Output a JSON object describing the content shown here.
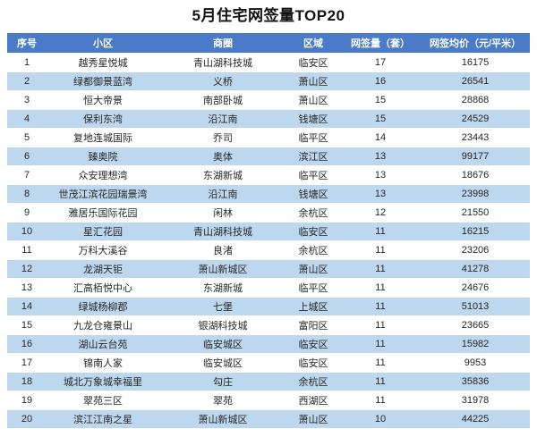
{
  "page": {
    "title": "5月住宅网签量TOP20"
  },
  "chart_data": {
    "type": "table",
    "title": "5月住宅网签量TOP20",
    "columns": [
      "序号",
      "小区",
      "商圈",
      "区域",
      "网签量（套）",
      "网签均价（元/平米）"
    ],
    "rows": [
      [
        "1",
        "越秀星悦城",
        "青山湖科技城",
        "临安区",
        "17",
        "16175"
      ],
      [
        "2",
        "绿都御景蓝湾",
        "义桥",
        "萧山区",
        "16",
        "26541"
      ],
      [
        "3",
        "恒大帝景",
        "南部卧城",
        "萧山区",
        "15",
        "28868"
      ],
      [
        "4",
        "保利东湾",
        "沿江南",
        "钱塘区",
        "15",
        "24529"
      ],
      [
        "5",
        "复地连城国际",
        "乔司",
        "临平区",
        "14",
        "23443"
      ],
      [
        "6",
        "臻奥院",
        "奥体",
        "滨江区",
        "13",
        "99177"
      ],
      [
        "7",
        "众安理想湾",
        "东湖新城",
        "临平区",
        "13",
        "18676"
      ],
      [
        "8",
        "世茂江滨花园瑞景湾",
        "沿江南",
        "钱塘区",
        "13",
        "23998"
      ],
      [
        "9",
        "雅居乐国际花园",
        "闲林",
        "余杭区",
        "12",
        "21550"
      ],
      [
        "10",
        "星汇花园",
        "青山湖科技城",
        "临安区",
        "11",
        "16215"
      ],
      [
        "11",
        "万科大溪谷",
        "良渚",
        "余杭区",
        "11",
        "23206"
      ],
      [
        "12",
        "龙湖天钜",
        "萧山新城区",
        "萧山区",
        "11",
        "41278"
      ],
      [
        "13",
        "汇高栢悦中心",
        "东湖新城",
        "临平区",
        "11",
        "24676"
      ],
      [
        "14",
        "绿城杨柳郡",
        "七堡",
        "上城区",
        "11",
        "51013"
      ],
      [
        "15",
        "九龙仓雍景山",
        "银湖科技城",
        "富阳区",
        "11",
        "23665"
      ],
      [
        "16",
        "湖山云台苑",
        "临安城区",
        "临安区",
        "11",
        "15982"
      ],
      [
        "17",
        "锦南人家",
        "临安城区",
        "临安区",
        "11",
        "9953"
      ],
      [
        "18",
        "城北万象城幸福里",
        "勾庄",
        "余杭区",
        "11",
        "35836"
      ],
      [
        "19",
        "翠苑三区",
        "翠苑",
        "西湖区",
        "11",
        "31978"
      ],
      [
        "20",
        "滨江江南之星",
        "萧山新城区",
        "萧山区",
        "10",
        "44225"
      ]
    ],
    "layout": {
      "striped_rows": "even",
      "legend": "none",
      "grid": "off"
    },
    "colors": {
      "header_bg": "#4A7BC8",
      "header_text": "#FFFFFF",
      "stripe_bg": "#BDD7EE",
      "row_bg": "#FFFFFF",
      "cell_text": "#262626",
      "title_text": "#111111"
    }
  }
}
